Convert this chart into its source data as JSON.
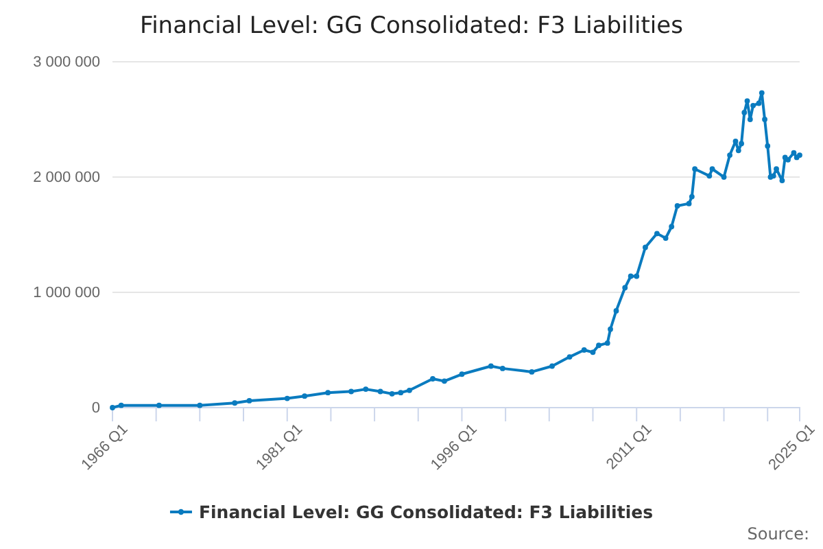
{
  "chart_data": {
    "type": "line",
    "title": "Financial Level: GG Consolidated: F3 Liabilities",
    "x": [
      "1966-01",
      "1966-10",
      "1970-01",
      "1973-07",
      "1976-07",
      "1977-10",
      "1981-01",
      "1982-07",
      "1984-07",
      "1986-07",
      "1987-10",
      "1989-01",
      "1990-01",
      "1990-10",
      "1991-07",
      "1993-07",
      "1994-07",
      "1996-01",
      "1998-07",
      "1999-07",
      "2002-01",
      "2003-10",
      "2005-04",
      "2006-07",
      "2007-04",
      "2007-10",
      "2008-07",
      "2008-10",
      "2009-04",
      "2010-01",
      "2010-07",
      "2011-01",
      "2011-10",
      "2012-10",
      "2013-07",
      "2014-01",
      "2014-07",
      "2015-07",
      "2015-10",
      "2016-01",
      "2017-04",
      "2017-07",
      "2018-07",
      "2019-01",
      "2019-07",
      "2019-10",
      "2020-01",
      "2020-04",
      "2020-07",
      "2020-10",
      "2021-01",
      "2021-07",
      "2021-10",
      "2022-01",
      "2022-04",
      "2022-07",
      "2022-10",
      "2023-01",
      "2023-07",
      "2023-10",
      "2024-01",
      "2024-07",
      "2024-10",
      "2025-01"
    ],
    "series": [
      {
        "name": "Financial Level: GG Consolidated: F3 Liabilities",
        "color": "#0a7bbf",
        "values": [
          0,
          20000,
          20000,
          20000,
          40000,
          60000,
          80000,
          100000,
          130000,
          140000,
          160000,
          140000,
          120000,
          130000,
          150000,
          250000,
          230000,
          290000,
          360000,
          340000,
          310000,
          360000,
          440000,
          500000,
          480000,
          540000,
          560000,
          680000,
          840000,
          1040000,
          1140000,
          1140000,
          1390000,
          1510000,
          1470000,
          1570000,
          1750000,
          1770000,
          1830000,
          2070000,
          2010000,
          2070000,
          2000000,
          2190000,
          2310000,
          2230000,
          2290000,
          2560000,
          2660000,
          2500000,
          2620000,
          2640000,
          2730000,
          2500000,
          2270000,
          2000000,
          2010000,
          2070000,
          1970000,
          2170000,
          2150000,
          2210000,
          2170000,
          2190000
        ]
      }
    ],
    "xlim": [
      "1966-01",
      "2025-01"
    ],
    "xticks": [
      {
        "value": "1966-01",
        "label": "1966 Q1"
      },
      {
        "value": "1969-10",
        "label": null
      },
      {
        "value": "1973-07",
        "label": null
      },
      {
        "value": "1977-04",
        "label": null
      },
      {
        "value": "1981-01",
        "label": "1981 Q1"
      },
      {
        "value": "1984-10",
        "label": null
      },
      {
        "value": "1988-07",
        "label": null
      },
      {
        "value": "1992-04",
        "label": null
      },
      {
        "value": "1996-01",
        "label": "1996 Q1"
      },
      {
        "value": "1999-10",
        "label": null
      },
      {
        "value": "2003-07",
        "label": null
      },
      {
        "value": "2007-04",
        "label": null
      },
      {
        "value": "2011-01",
        "label": "2011 Q1"
      },
      {
        "value": "2014-10",
        "label": null
      },
      {
        "value": "2018-07",
        "label": null
      },
      {
        "value": "2022-04",
        "label": null
      },
      {
        "value": "2025-01",
        "label": "2025 Q1"
      }
    ],
    "ylim": [
      0,
      3000000
    ],
    "yticks": [
      {
        "value": 0,
        "label": "0"
      },
      {
        "value": 1000000,
        "label": "1 000 000"
      },
      {
        "value": 2000000,
        "label": "2 000 000"
      },
      {
        "value": 3000000,
        "label": "3 000 000"
      }
    ],
    "grid": "y",
    "legend": "bottom",
    "marker": "circle",
    "line_style": "solid",
    "annotations": [
      "Source:"
    ]
  }
}
